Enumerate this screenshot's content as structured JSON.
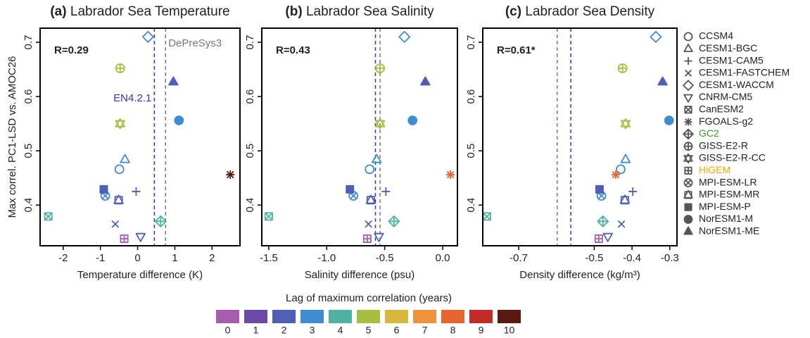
{
  "chart_data": [
    {
      "type": "scatter",
      "panel_label": "(a)",
      "title": "Labrador Sea Temperature",
      "xlabel": "Temperature difference (K)",
      "ylabel": "Max correl. PC1-LSD vs. AMOC26",
      "annotation": "R=0.29",
      "xlim": [
        -2.62,
        2.75
      ],
      "xticks": [
        -2,
        -1,
        0,
        1,
        2
      ],
      "ylim": [
        0.325,
        0.726
      ],
      "yticks": [
        0.4,
        0.5,
        0.6,
        0.7
      ],
      "ref_lines": [
        {
          "label": "EN4.2.1",
          "x": 0.45,
          "color": "#3333bb"
        },
        {
          "label": "DePreSys3",
          "x": 0.75,
          "color": "#777777"
        }
      ],
      "series": [
        {
          "name": "CCSM4",
          "marker": "circle",
          "color": "#3f8cd0",
          "x": -0.49,
          "y": 0.466
        },
        {
          "name": "CESM1-BGC",
          "marker": "triangle",
          "color": "#3f8cd0",
          "x": -0.34,
          "y": 0.484
        },
        {
          "name": "CESM1-CAM5",
          "marker": "plus",
          "color": "#4f5fb8",
          "x": -0.04,
          "y": 0.425
        },
        {
          "name": "CESM1-FASTCHEM",
          "marker": "x",
          "color": "#4f5fb8",
          "x": -0.6,
          "y": 0.365
        },
        {
          "name": "CESM1-WACCM",
          "marker": "diamond",
          "color": "#3f8cd0",
          "x": 0.28,
          "y": 0.71
        },
        {
          "name": "CNRM-CM5",
          "marker": "triangle-down",
          "color": "#4f5fb8",
          "x": 0.08,
          "y": 0.342
        },
        {
          "name": "CanESM2",
          "marker": "square-x",
          "color": "#4db3a0",
          "x": -2.4,
          "y": 0.379
        },
        {
          "name": "FGOALS-g2",
          "marker": "asterisk",
          "color": "#5a1a12",
          "x": 2.49,
          "y": 0.456
        },
        {
          "name": "GC2",
          "marker": "diamond-plus",
          "color": "#4db3a0",
          "x": 0.62,
          "y": 0.37,
          "legend_color": "#3a9a2a"
        },
        {
          "name": "GISS-E2-R",
          "marker": "circle-plus",
          "color": "#a6bf3e",
          "x": -0.47,
          "y": 0.652
        },
        {
          "name": "GISS-E2-R-CC",
          "marker": "star-david",
          "color": "#a6bf3e",
          "x": -0.47,
          "y": 0.55
        },
        {
          "name": "HiGEM",
          "marker": "square-plus",
          "color": "#a55eac",
          "x": -0.36,
          "y": 0.338,
          "legend_color": "#f5a800"
        },
        {
          "name": "MPI-ESM-LR",
          "marker": "circle-x",
          "color": "#3f8cd0",
          "x": -0.87,
          "y": 0.417
        },
        {
          "name": "MPI-ESM-MR",
          "marker": "square-triangle",
          "color": "#4f5fb8",
          "x": -0.51,
          "y": 0.409
        },
        {
          "name": "MPI-ESM-P",
          "marker": "square-filled",
          "color": "#4f5fb8",
          "x": -0.91,
          "y": 0.429
        },
        {
          "name": "NorESM1-M",
          "marker": "circle-filled",
          "color": "#3f8cd0",
          "x": 1.11,
          "y": 0.556
        },
        {
          "name": "NorESM1-ME",
          "marker": "triangle-filled",
          "color": "#4f5fb8",
          "x": 0.96,
          "y": 0.627
        }
      ]
    },
    {
      "type": "scatter",
      "panel_label": "(b)",
      "title": "Labrador Sea Salinity",
      "xlabel": "Salinity difference (psu)",
      "annotation": "R=0.43",
      "xlim": [
        -1.56,
        0.127
      ],
      "xticks": [
        -1.5,
        {
          "value": -1,
          "label": "-1.0"
        },
        -0.5,
        {
          "value": 0,
          "label": "0.0"
        }
      ],
      "ylim": [
        0.325,
        0.726
      ],
      "yticks": [
        0.4,
        0.5,
        0.6,
        0.7
      ],
      "ref_lines": [
        {
          "x": -0.58,
          "color": "#3333bb"
        },
        {
          "x": -0.54,
          "color": "#777777"
        }
      ],
      "series": [
        {
          "name": "CCSM4",
          "marker": "circle",
          "color": "#3f8cd0",
          "x": -0.63,
          "y": 0.466
        },
        {
          "name": "CESM1-BGC",
          "marker": "triangle",
          "color": "#3f8cd0",
          "x": -0.57,
          "y": 0.484
        },
        {
          "name": "CESM1-CAM5",
          "marker": "plus",
          "color": "#4f5fb8",
          "x": -0.49,
          "y": 0.425
        },
        {
          "name": "CESM1-FASTCHEM",
          "marker": "x",
          "color": "#4f5fb8",
          "x": -0.64,
          "y": 0.365
        },
        {
          "name": "CESM1-WACCM",
          "marker": "diamond",
          "color": "#3f8cd0",
          "x": -0.33,
          "y": 0.71
        },
        {
          "name": "CNRM-CM5",
          "marker": "triangle-down",
          "color": "#4f5fb8",
          "x": -0.55,
          "y": 0.342
        },
        {
          "name": "CanESM2",
          "marker": "square-x",
          "color": "#4db3a0",
          "x": -1.5,
          "y": 0.379
        },
        {
          "name": "FGOALS-g2",
          "marker": "asterisk",
          "color": "#e8642c",
          "x": 0.067,
          "y": 0.456
        },
        {
          "name": "GC2",
          "marker": "diamond-plus",
          "color": "#4db3a0",
          "x": -0.42,
          "y": 0.37
        },
        {
          "name": "GISS-E2-R",
          "marker": "circle-plus",
          "color": "#a6bf3e",
          "x": -0.54,
          "y": 0.652
        },
        {
          "name": "GISS-E2-R-CC",
          "marker": "star-david",
          "color": "#a6bf3e",
          "x": -0.54,
          "y": 0.55
        },
        {
          "name": "HiGEM",
          "marker": "square-plus",
          "color": "#a55eac",
          "x": -0.65,
          "y": 0.338
        },
        {
          "name": "MPI-ESM-LR",
          "marker": "circle-x",
          "color": "#3f8cd0",
          "x": -0.77,
          "y": 0.417
        },
        {
          "name": "MPI-ESM-MR",
          "marker": "square-triangle",
          "color": "#4f5fb8",
          "x": -0.62,
          "y": 0.409
        },
        {
          "name": "MPI-ESM-P",
          "marker": "square-filled",
          "color": "#4f5fb8",
          "x": -0.8,
          "y": 0.429
        },
        {
          "name": "NorESM1-M",
          "marker": "circle-filled",
          "color": "#3f8cd0",
          "x": -0.26,
          "y": 0.556
        },
        {
          "name": "NorESM1-ME",
          "marker": "triangle-filled",
          "color": "#4f5fb8",
          "x": -0.15,
          "y": 0.627
        }
      ]
    },
    {
      "type": "scatter",
      "panel_label": "(c)",
      "title": "Labrador Sea Density",
      "xlabel": "Density difference (kg/m³)",
      "annotation": "R=0.61*",
      "xlim": [
        -0.795,
        -0.281
      ],
      "xticks": [
        -0.7,
        -0.5,
        -0.4,
        -0.3
      ],
      "ylim": [
        0.325,
        0.726
      ],
      "yticks": [
        0.4,
        0.5,
        0.6,
        0.7
      ],
      "ref_lines": [
        {
          "x": -0.562,
          "color": "#3333bb"
        },
        {
          "x": -0.598,
          "color": "#777777"
        }
      ],
      "series": [
        {
          "name": "CCSM4",
          "marker": "circle",
          "color": "#3f8cd0",
          "x": -0.43,
          "y": 0.466
        },
        {
          "name": "CESM1-BGC",
          "marker": "triangle",
          "color": "#3f8cd0",
          "x": -0.417,
          "y": 0.484
        },
        {
          "name": "CESM1-CAM5",
          "marker": "plus",
          "color": "#4f5fb8",
          "x": -0.398,
          "y": 0.425
        },
        {
          "name": "CESM1-FASTCHEM",
          "marker": "x",
          "color": "#4f5fb8",
          "x": -0.428,
          "y": 0.365
        },
        {
          "name": "CESM1-WACCM",
          "marker": "diamond",
          "color": "#3f8cd0",
          "x": -0.337,
          "y": 0.71
        },
        {
          "name": "CNRM-CM5",
          "marker": "triangle-down",
          "color": "#4f5fb8",
          "x": -0.464,
          "y": 0.342
        },
        {
          "name": "CanESM2",
          "marker": "square-x",
          "color": "#4db3a0",
          "x": -0.784,
          "y": 0.379
        },
        {
          "name": "FGOALS-g2",
          "marker": "asterisk",
          "color": "#e8642c",
          "x": -0.443,
          "y": 0.456
        },
        {
          "name": "GC2",
          "marker": "diamond-plus",
          "color": "#4db3a0",
          "x": -0.477,
          "y": 0.37
        },
        {
          "name": "GISS-E2-R",
          "marker": "circle-plus",
          "color": "#a6bf3e",
          "x": -0.425,
          "y": 0.652
        },
        {
          "name": "GISS-E2-R-CC",
          "marker": "star-david",
          "color": "#a6bf3e",
          "x": -0.417,
          "y": 0.55
        },
        {
          "name": "HiGEM",
          "marker": "square-plus",
          "color": "#a55eac",
          "x": -0.488,
          "y": 0.338
        },
        {
          "name": "MPI-ESM-LR",
          "marker": "circle-x",
          "color": "#3f8cd0",
          "x": -0.481,
          "y": 0.417
        },
        {
          "name": "MPI-ESM-MR",
          "marker": "square-triangle",
          "color": "#4f5fb8",
          "x": -0.419,
          "y": 0.409
        },
        {
          "name": "MPI-ESM-P",
          "marker": "square-filled",
          "color": "#4f5fb8",
          "x": -0.486,
          "y": 0.429
        },
        {
          "name": "NorESM1-M",
          "marker": "circle-filled",
          "color": "#3f8cd0",
          "x": -0.302,
          "y": 0.556
        },
        {
          "name": "NorESM1-ME",
          "marker": "triangle-filled",
          "color": "#4f5fb8",
          "x": -0.319,
          "y": 0.627
        }
      ]
    }
  ],
  "legend": {
    "position": "right",
    "marker_color": "#555555"
  },
  "lag_legend": {
    "title": "Lag of maximum correlation (years)",
    "labels": [
      0,
      1,
      2,
      3,
      4,
      5,
      6,
      7,
      8,
      9,
      10
    ],
    "colors": [
      "#a55eac",
      "#6a4aa5",
      "#4f5fb8",
      "#3f8cd0",
      "#4db3a0",
      "#a6bf3e",
      "#d6b83a",
      "#f0913b",
      "#e8642c",
      "#c42a26",
      "#5a1a12"
    ]
  }
}
